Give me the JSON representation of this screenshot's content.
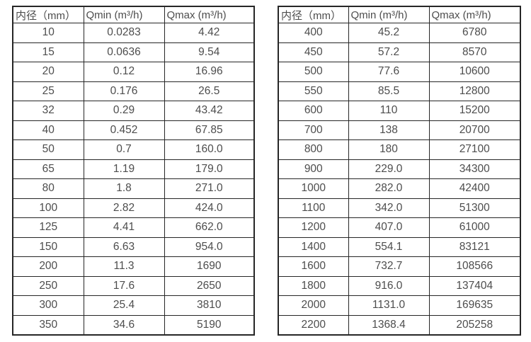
{
  "page": {
    "background_color": "#ffffff",
    "text_color": "#4d4d4d",
    "border_color": "#262626"
  },
  "chart_data": [
    {
      "type": "table",
      "name": "flow-range-table-small-diameters",
      "columns": [
        "内径（mm）",
        "Qmin (m³/h)",
        "Qmax (m³/h)"
      ],
      "rows": [
        [
          "10",
          "0.0283",
          "4.42"
        ],
        [
          "15",
          "0.0636",
          "9.54"
        ],
        [
          "20",
          "0.12",
          "16.96"
        ],
        [
          "25",
          "0.176",
          "26.5"
        ],
        [
          "32",
          "0.29",
          "43.42"
        ],
        [
          "40",
          "0.452",
          "67.85"
        ],
        [
          "50",
          "0.7",
          "160.0"
        ],
        [
          "65",
          "1.19",
          "179.0"
        ],
        [
          "80",
          "1.8",
          "271.0"
        ],
        [
          "100",
          "2.82",
          "424.0"
        ],
        [
          "125",
          "4.41",
          "662.0"
        ],
        [
          "150",
          "6.63",
          "954.0"
        ],
        [
          "200",
          "11.3",
          "1690"
        ],
        [
          "250",
          "17.6",
          "2650"
        ],
        [
          "300",
          "25.4",
          "3810"
        ],
        [
          "350",
          "34.6",
          "5190"
        ]
      ]
    },
    {
      "type": "table",
      "name": "flow-range-table-large-diameters",
      "columns": [
        "内径（mm）",
        "Qmin (m³/h)",
        "Qmax (m³/h)"
      ],
      "rows": [
        [
          "400",
          "45.2",
          "6780"
        ],
        [
          "450",
          "57.2",
          "8570"
        ],
        [
          "500",
          "77.6",
          "10600"
        ],
        [
          "550",
          "85.5",
          "12800"
        ],
        [
          "600",
          "110",
          "15200"
        ],
        [
          "700",
          "138",
          "20700"
        ],
        [
          "800",
          "180",
          "27100"
        ],
        [
          "900",
          "229.0",
          "34300"
        ],
        [
          "1000",
          "282.0",
          "42400"
        ],
        [
          "1100",
          "342.0",
          "51300"
        ],
        [
          "1200",
          "407.0",
          "61000"
        ],
        [
          "1400",
          "554.1",
          "83121"
        ],
        [
          "1600",
          "732.7",
          "108566"
        ],
        [
          "1800",
          "916.0",
          "137404"
        ],
        [
          "2000",
          "1131.0",
          "169635"
        ],
        [
          "2200",
          "1368.4",
          "205258"
        ]
      ]
    }
  ]
}
